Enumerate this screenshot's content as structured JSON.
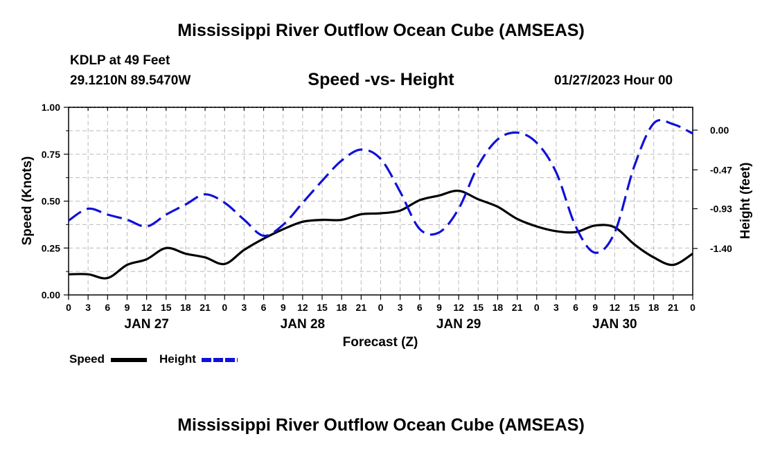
{
  "page": {
    "title_top": "Mississippi River Outflow Ocean Cube (AMSEAS)",
    "station": "KDLP at 49 Feet",
    "coords": "29.1210N  89.5470W",
    "subtitle": "Speed -vs- Height",
    "datetime": "01/27/2023 Hour 00",
    "title_bottom": "Mississippi River Outflow Ocean Cube (AMSEAS)"
  },
  "chart_data": {
    "type": "line",
    "xlabel": "Forecast (Z)",
    "ylabel_left": "Speed (Knots)",
    "ylabel_right": "Height (feet)",
    "x_range_hours": [
      0,
      96
    ],
    "x_tick_step_hours": 3,
    "x_tick_labels": [
      "0",
      "3",
      "6",
      "9",
      "12",
      "15",
      "18",
      "21",
      "0",
      "3",
      "6",
      "9",
      "12",
      "15",
      "18",
      "21",
      "0",
      "3",
      "6",
      "9",
      "12",
      "15",
      "18",
      "21",
      "0",
      "3",
      "6",
      "9",
      "12",
      "15",
      "18",
      "21",
      "0"
    ],
    "day_labels": [
      {
        "hour": 12,
        "label": "JAN 27"
      },
      {
        "hour": 36,
        "label": "JAN 28"
      },
      {
        "hour": 60,
        "label": "JAN 29"
      },
      {
        "hour": 84,
        "label": "JAN 30"
      }
    ],
    "left_axis": {
      "min": 0,
      "max": 1,
      "ticks": [
        0,
        0.25,
        0.5,
        0.75,
        1
      ],
      "tick_labels": [
        "0.00",
        "0.25",
        "0.50",
        "0.75",
        "1.00"
      ]
    },
    "right_axis": {
      "min": -1.95,
      "max": 0.27,
      "ticks": [
        0.0,
        -0.47,
        -0.93,
        -1.4
      ],
      "tick_labels": [
        "0.00",
        "-0.47",
        "-0.93",
        "-1.40"
      ]
    },
    "grid": true,
    "series": [
      {
        "name": "Speed",
        "axis": "left",
        "color": "#000000",
        "style": "solid",
        "x": [
          0,
          3,
          6,
          9,
          12,
          15,
          18,
          21,
          24,
          27,
          30,
          33,
          36,
          39,
          42,
          45,
          48,
          51,
          54,
          57,
          60,
          63,
          66,
          69,
          72,
          75,
          78,
          81,
          84,
          87,
          90,
          93,
          96
        ],
        "values": [
          0.11,
          0.11,
          0.09,
          0.16,
          0.19,
          0.25,
          0.22,
          0.2,
          0.165,
          0.24,
          0.3,
          0.35,
          0.39,
          0.4,
          0.4,
          0.43,
          0.435,
          0.45,
          0.505,
          0.53,
          0.555,
          0.51,
          0.47,
          0.405,
          0.365,
          0.34,
          0.335,
          0.37,
          0.36,
          0.27,
          0.2,
          0.16,
          0.22
        ]
      },
      {
        "name": "Height",
        "axis": "right",
        "color": "#1010d8",
        "style": "dashed",
        "x": [
          0,
          3,
          6,
          9,
          12,
          15,
          18,
          21,
          24,
          27,
          30,
          33,
          36,
          39,
          42,
          45,
          48,
          51,
          54,
          57,
          60,
          63,
          66,
          69,
          72,
          75,
          78,
          81,
          84,
          87,
          90,
          93,
          96
        ],
        "values": [
          -1.07,
          -0.93,
          -1.0,
          -1.06,
          -1.14,
          -1.0,
          -0.88,
          -0.76,
          -0.86,
          -1.06,
          -1.25,
          -1.12,
          -0.86,
          -0.6,
          -0.36,
          -0.23,
          -0.34,
          -0.73,
          -1.17,
          -1.21,
          -0.93,
          -0.42,
          -0.11,
          -0.03,
          -0.15,
          -0.5,
          -1.14,
          -1.45,
          -1.21,
          -0.43,
          0.08,
          0.07,
          -0.04
        ]
      }
    ],
    "legend": [
      {
        "label": "Speed",
        "color": "#000000"
      },
      {
        "label": "Height",
        "color": "#1010d8"
      }
    ]
  }
}
